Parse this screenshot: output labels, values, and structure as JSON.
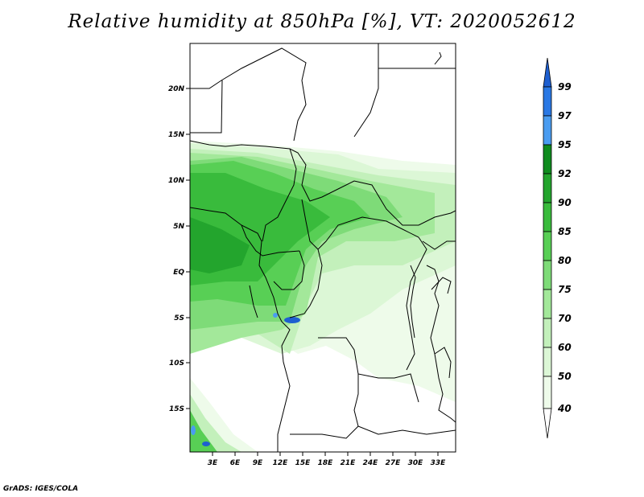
{
  "title": "Relative humidity at 850hPa [%], VT: 2020052612",
  "credit": "GrADS: IGES/COLA",
  "map": {
    "lat_labels": [
      "20N",
      "15N",
      "10N",
      "5N",
      "EQ",
      "5S",
      "10S",
      "15S"
    ],
    "lon_labels": [
      "3E",
      "6E",
      "9E",
      "12E",
      "15E",
      "18E",
      "21E",
      "24E",
      "27E",
      "30E",
      "33E"
    ]
  },
  "colorbar": {
    "labels": [
      "99",
      "97",
      "95",
      "92",
      "90",
      "85",
      "80",
      "75",
      "70",
      "60",
      "50",
      "40"
    ],
    "colors": {
      "above_99": "#1e5fd0",
      "97_99": "#2a78e4",
      "95_97": "#4a9cf0",
      "92_95": "#0f8c1e",
      "90_92": "#23a52d",
      "85_90": "#39bb3c",
      "80_85": "#58cf55",
      "75_80": "#7edb78",
      "70_75": "#a3e89a",
      "60_70": "#c3f0bb",
      "50_60": "#dcf7d6",
      "40_50": "#eefbea",
      "below_40": "#ffffff"
    }
  }
}
